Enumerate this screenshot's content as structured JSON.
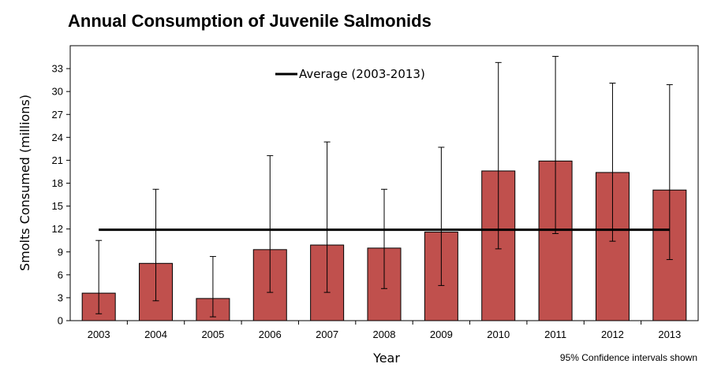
{
  "chart_data": {
    "type": "bar",
    "title": "Annual Consumption of Juvenile Salmonids",
    "xlabel": "Year",
    "ylabel": "Smolts Consumed  (millions)",
    "ylim": [
      0,
      36
    ],
    "yticks": [
      0,
      3,
      6,
      9,
      12,
      15,
      18,
      21,
      24,
      27,
      30,
      33
    ],
    "categories": [
      "2003",
      "2004",
      "2005",
      "2006",
      "2007",
      "2008",
      "2009",
      "2010",
      "2011",
      "2012",
      "2013"
    ],
    "values": [
      3.6,
      7.5,
      2.9,
      9.3,
      9.9,
      9.5,
      11.6,
      19.6,
      20.9,
      19.4,
      17.1
    ],
    "ci_lower": [
      0.9,
      2.6,
      0.5,
      3.7,
      3.7,
      4.2,
      4.6,
      9.4,
      11.4,
      10.4,
      8.0
    ],
    "ci_upper": [
      10.5,
      17.2,
      8.4,
      21.6,
      23.4,
      17.2,
      22.7,
      33.8,
      34.6,
      31.1,
      30.9
    ],
    "average": 11.9,
    "legend": [
      "Average (2003-2013)"
    ],
    "legend_position": "top-center",
    "annotation": "95% Confidence intervals shown",
    "grid": false,
    "colors": {
      "bar": "#c0504d",
      "bar_edge": "#000000",
      "average_line": "#000000",
      "error_bar": "#000000"
    }
  }
}
